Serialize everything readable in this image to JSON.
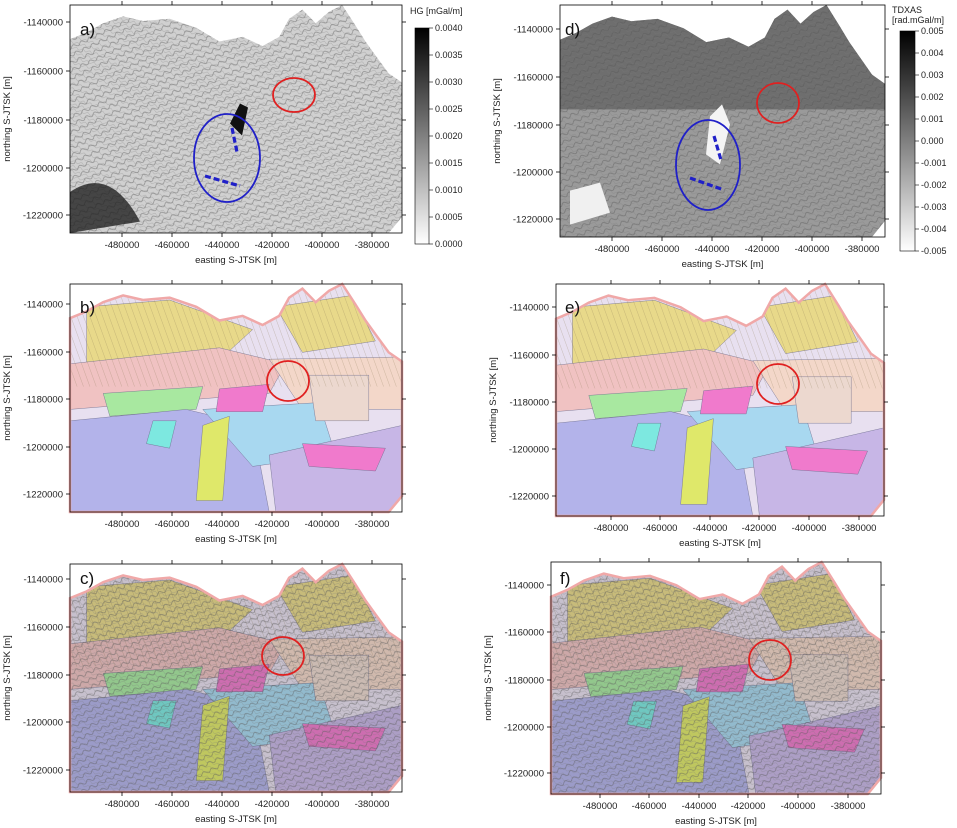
{
  "panels": [
    {
      "id": "a",
      "label": "a)",
      "type": "gravity-gradient",
      "xlabel": "easting S-JTSK [m]",
      "ylabel": "northing S-JTSK [m]",
      "xticks": [
        "-480000",
        "-460000",
        "-440000",
        "-420000",
        "-400000",
        "-380000"
      ],
      "yticks": [
        "-1140000",
        "-1160000",
        "-1180000",
        "-1200000",
        "-1220000"
      ]
    },
    {
      "id": "b",
      "label": "b)",
      "type": "geology",
      "xlabel": "easting S-JTSK [m]",
      "ylabel": "northing S-JTSK [m]",
      "xticks": [
        "-480000",
        "-460000",
        "-440000",
        "-420000",
        "-400000",
        "-380000"
      ],
      "yticks": [
        "-1140000",
        "-1160000",
        "-1180000",
        "-1200000",
        "-1220000"
      ]
    },
    {
      "id": "c",
      "label": "c)",
      "type": "geology-shaded",
      "xlabel": "easting S-JTSK [m]",
      "ylabel": "northing S-JTSK [m]",
      "xticks": [
        "-480000",
        "-460000",
        "-440000",
        "-420000",
        "-400000",
        "-380000"
      ],
      "yticks": [
        "-1140000",
        "-1160000",
        "-1180000",
        "-1200000",
        "-1220000"
      ]
    },
    {
      "id": "d",
      "label": "d)",
      "type": "tilt-derivative",
      "xlabel": "easting S-JTSK [m]",
      "ylabel": "northing S-JTSK [m]",
      "xticks": [
        "-480000",
        "-460000",
        "-440000",
        "-420000",
        "-400000",
        "-380000"
      ],
      "yticks": [
        "-1140000",
        "-1160000",
        "-1180000",
        "-1200000",
        "-1220000"
      ]
    },
    {
      "id": "e",
      "label": "e)",
      "type": "geology",
      "xlabel": "easting S-JTSK [m]",
      "ylabel": "northing S-JTSK [m]",
      "xticks": [
        "-480000",
        "-460000",
        "-440000",
        "-420000",
        "-400000",
        "-380000"
      ],
      "yticks": [
        "-1140000",
        "-1160000",
        "-1180000",
        "-1200000",
        "-1220000"
      ]
    },
    {
      "id": "f",
      "label": "f)",
      "type": "geology-shaded",
      "xlabel": "easting S-JTSK [m]",
      "ylabel": "northing S-JTSK [m]",
      "xticks": [
        "-480000",
        "-460000",
        "-440000",
        "-420000",
        "-400000",
        "-380000"
      ],
      "yticks": [
        "-1140000",
        "-1160000",
        "-1180000",
        "-1200000",
        "-1220000"
      ]
    }
  ],
  "colorbars": [
    {
      "id": "hg",
      "title": "HG [mGal/m]",
      "ticks": [
        "0.0040",
        "0.0035",
        "0.0030",
        "0.0025",
        "0.0020",
        "0.0015",
        "0.0010",
        "0.0005",
        "0.0000"
      ],
      "top_color": "#000000",
      "bottom_color": "#ffffff"
    },
    {
      "id": "tdxas",
      "title": "TDXAS",
      "title2": "[rad.mGal/m]",
      "ticks": [
        "0.005",
        "0.004",
        "0.003",
        "0.002",
        "0.001",
        "0.000",
        "-0.001",
        "-0.002",
        "-0.003",
        "-0.004",
        "-0.005"
      ],
      "top_color": "#000000",
      "bottom_color": "#ffffff"
    }
  ],
  "colors": {
    "red_marker": "#e02020",
    "blue_marker": "#2020c8",
    "outline": "#f0a8a8"
  }
}
